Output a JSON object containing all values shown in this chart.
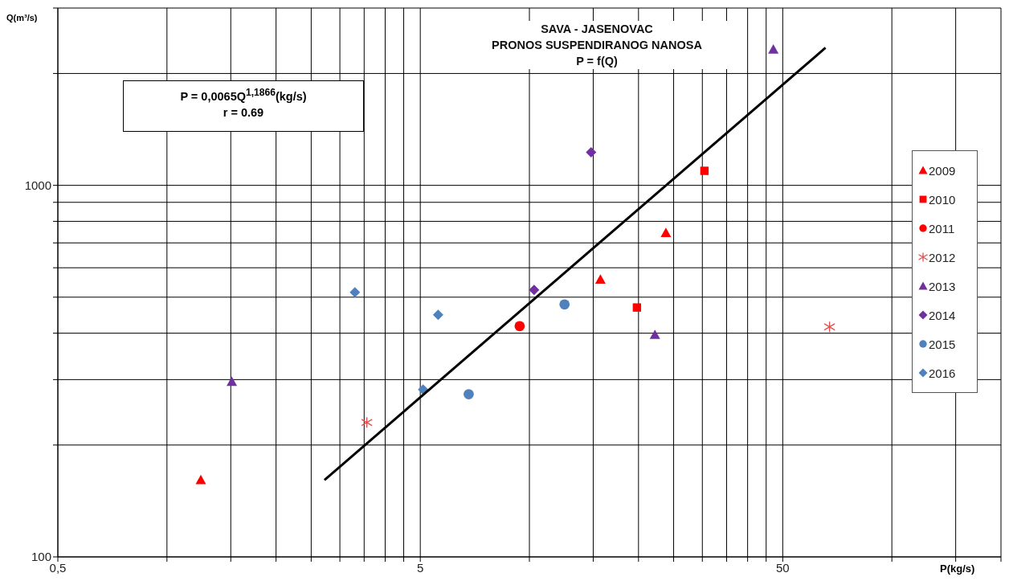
{
  "chart_data": {
    "type": "scatter",
    "title": "SAVA - JASENOVAC",
    "subtitle": "PRONOS SUSPENDIRANOG NANOSA\nP = f(Q)",
    "xlabel": "P(kg/s)",
    "ylabel": "Q(m³/s)",
    "annotations": [
      "P = 0,0065Q$^{1,1866}$(kg/s)\nr = 0.69"
    ],
    "log": "xy",
    "grid": true,
    "legend": "right",
    "xlim": [
      0.5,
      200
    ],
    "ylim": [
      100,
      3000
    ],
    "xticks": [
      {
        "value": 0.5,
        "label": "0,5"
      },
      {
        "value": 1,
        "label": null
      },
      {
        "value": 1.5,
        "label": null
      },
      {
        "value": 2,
        "label": null
      },
      {
        "value": 2.5,
        "label": null
      },
      {
        "value": 3,
        "label": null
      },
      {
        "value": 3.5,
        "label": null
      },
      {
        "value": 4,
        "label": null
      },
      {
        "value": 4.5,
        "label": null
      },
      5,
      {
        "value": 10,
        "label": null
      },
      {
        "value": 15,
        "label": null
      },
      {
        "value": 20,
        "label": null
      },
      {
        "value": 25,
        "label": null
      },
      {
        "value": 30,
        "label": null
      },
      {
        "value": 35,
        "label": null
      },
      {
        "value": 40,
        "label": null
      },
      {
        "value": 45,
        "label": null
      },
      50,
      {
        "value": 100,
        "label": null
      },
      {
        "value": 150,
        "label": null
      },
      {
        "value": 200,
        "label": null
      }
    ],
    "yticks": [
      100,
      {
        "value": 200,
        "label": null
      },
      {
        "value": 300,
        "label": null
      },
      {
        "value": 400,
        "label": null
      },
      {
        "value": 500,
        "label": null
      },
      {
        "value": 600,
        "label": null
      },
      {
        "value": 700,
        "label": null
      },
      {
        "value": 800,
        "label": null
      },
      {
        "value": 900,
        "label": null
      },
      1000,
      {
        "value": 2000,
        "label": null
      },
      {
        "value": 3000,
        "label": null
      }
    ],
    "series": [
      {
        "name": "2009",
        "color": "#ff0000",
        "marker": "triangle",
        "x": [
          1.24,
          15.7,
          23.8
        ],
        "values": [
          161,
          558,
          745
        ]
      },
      {
        "name": "2010",
        "color": "#ff0000",
        "marker": "square",
        "x": [
          19.8,
          30.4
        ],
        "values": [
          469,
          1094
        ]
      },
      {
        "name": "2011",
        "color": "#ff0000",
        "marker": "circle",
        "x": [
          9.4
        ],
        "values": [
          418
        ]
      },
      {
        "name": "2012",
        "color": "#e05050",
        "marker": "cross",
        "x": [
          3.56,
          67.3
        ],
        "values": [
          230,
          416
        ]
      },
      {
        "name": "2013",
        "color": "#7030a0",
        "marker": "triangle",
        "x": [
          1.51,
          22.2,
          47.1
        ],
        "values": [
          296,
          396,
          2322
        ]
      },
      {
        "name": "2014",
        "color": "#7030a0",
        "marker": "diamond",
        "x": [
          10.3,
          14.8
        ],
        "values": [
          523,
          1227
        ]
      },
      {
        "name": "2015",
        "color": "#4f81bd",
        "marker": "circle",
        "x": [
          6.8,
          12.5
        ],
        "values": [
          274,
          478
        ]
      },
      {
        "name": "2016",
        "color": "#4f81bd",
        "marker": "diamond",
        "x": [
          3.3,
          5.6,
          5.09
        ],
        "values": [
          515,
          448,
          282
        ]
      },
      {
        "type": "line",
        "color": "#000000",
        "marker": "none",
        "line_style": "solid",
        "x": [
          2.72,
          65.6
        ],
        "values": [
          161,
          2345
        ]
      }
    ]
  }
}
